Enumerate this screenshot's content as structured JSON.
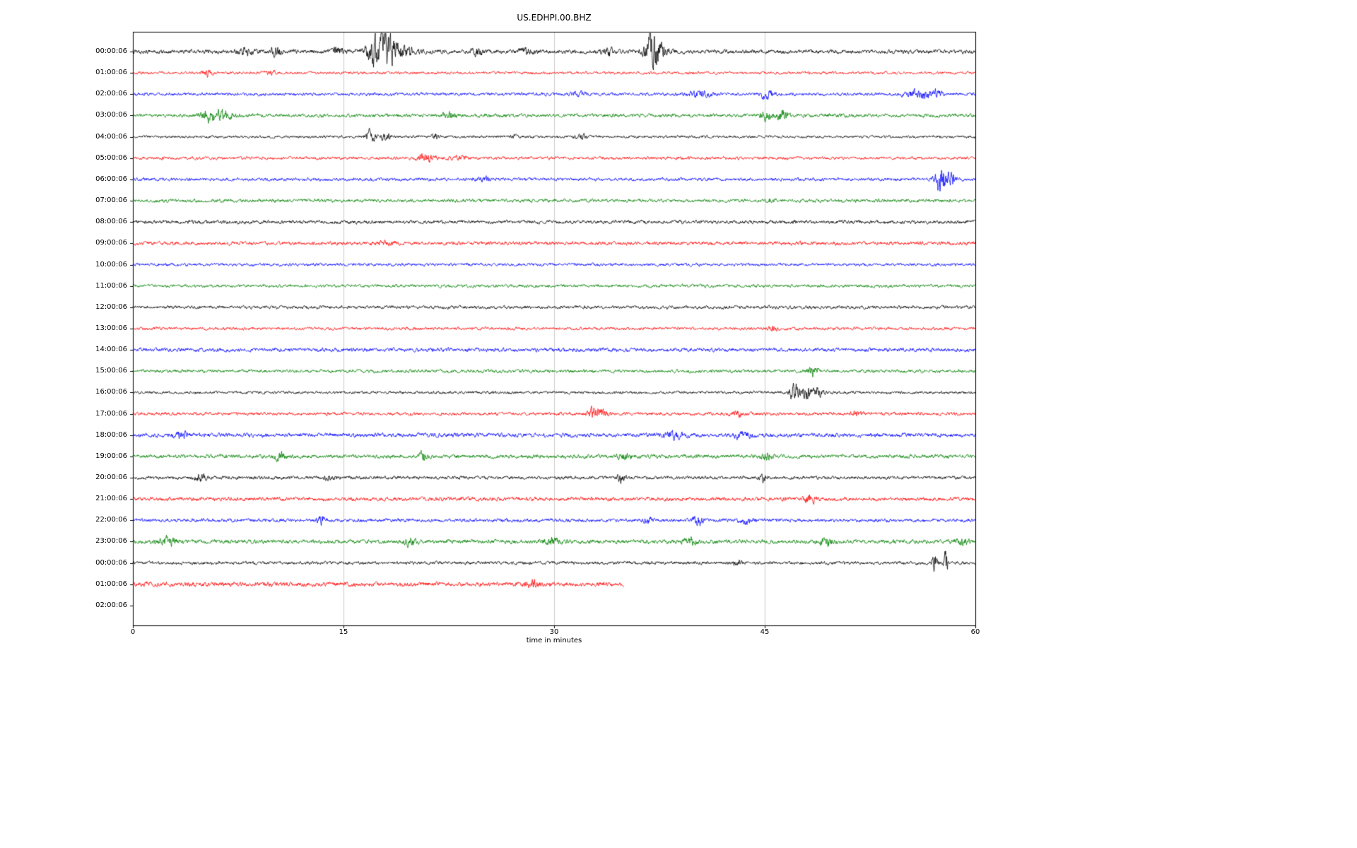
{
  "figure": {
    "background": "#ffffff"
  },
  "chart_data": {
    "type": "line",
    "title": "US.EDHPI.00.BHZ",
    "xlabel": "time in minutes",
    "xlim": [
      0,
      60
    ],
    "x_tick_labels": [
      "0",
      "15",
      "30",
      "45",
      "60"
    ],
    "x_tick_values": [
      0,
      15,
      30,
      45,
      60
    ],
    "grid_minutes": [
      15,
      30,
      45
    ],
    "grid_color": "#cccccc",
    "axis_color": "#000000",
    "color_cycle": [
      "#000000",
      "#ff0000",
      "#0000ff",
      "#008000"
    ],
    "row_labels": [
      "00:00:06",
      "01:00:06",
      "02:00:06",
      "03:00:06",
      "04:00:06",
      "05:00:06",
      "06:00:06",
      "07:00:06",
      "08:00:06",
      "09:00:06",
      "10:00:06",
      "11:00:06",
      "12:00:06",
      "13:00:06",
      "14:00:06",
      "15:00:06",
      "16:00:06",
      "17:00:06",
      "18:00:06",
      "19:00:06",
      "20:00:06",
      "21:00:06",
      "22:00:06",
      "23:00:06",
      "00:00:06",
      "01:00:06",
      "02:00:06"
    ],
    "traces": [
      {
        "label": "00:00:06",
        "color": "#000000",
        "end_minute": 60,
        "base_amp": 3.0,
        "events": [
          [
            8.0,
            1.5,
            0.4
          ],
          [
            10.2,
            2.0,
            0.3
          ],
          [
            14.6,
            2.0,
            0.25
          ],
          [
            17.4,
            7.0,
            0.5
          ],
          [
            18.1,
            4.0,
            0.6
          ],
          [
            19.0,
            2.0,
            0.8
          ],
          [
            24.5,
            1.5,
            0.3
          ],
          [
            28.0,
            1.2,
            0.4
          ],
          [
            33.8,
            2.0,
            0.3
          ],
          [
            37.0,
            8.0,
            0.35
          ],
          [
            37.5,
            3.0,
            0.5
          ]
        ]
      },
      {
        "label": "01:00:06",
        "color": "#ff0000",
        "end_minute": 60,
        "base_amp": 2.0,
        "events": [
          [
            5.3,
            2.5,
            0.25
          ],
          [
            9.8,
            1.2,
            0.3
          ]
        ]
      },
      {
        "label": "02:00:06",
        "color": "#0000ff",
        "end_minute": 60,
        "base_amp": 2.3,
        "events": [
          [
            31.8,
            1.5,
            0.4
          ],
          [
            40.3,
            2.0,
            0.6
          ],
          [
            45.2,
            3.5,
            0.3
          ],
          [
            56.0,
            2.5,
            0.7
          ],
          [
            57.2,
            1.8,
            0.3
          ]
        ]
      },
      {
        "label": "03:00:06",
        "color": "#008000",
        "end_minute": 60,
        "base_amp": 2.6,
        "events": [
          [
            5.4,
            2.5,
            0.4
          ],
          [
            6.4,
            2.5,
            0.5
          ],
          [
            22.5,
            1.3,
            0.4
          ],
          [
            45.1,
            3.2,
            0.25
          ],
          [
            46.2,
            3.0,
            0.3
          ]
        ]
      },
      {
        "label": "04:00:06",
        "color": "#000000",
        "end_minute": 60,
        "base_amp": 2.0,
        "events": [
          [
            16.9,
            4.0,
            0.25
          ],
          [
            18.0,
            3.5,
            0.22
          ],
          [
            21.5,
            2.2,
            0.18
          ],
          [
            27.1,
            1.8,
            0.15
          ],
          [
            31.9,
            2.3,
            0.25
          ]
        ]
      },
      {
        "label": "05:00:06",
        "color": "#ff0000",
        "end_minute": 60,
        "base_amp": 2.2,
        "events": [
          [
            20.9,
            2.2,
            0.5
          ],
          [
            23.2,
            1.4,
            0.4
          ]
        ]
      },
      {
        "label": "06:00:06",
        "color": "#0000ff",
        "end_minute": 60,
        "base_amp": 2.4,
        "events": [
          [
            25.0,
            1.3,
            0.4
          ],
          [
            57.6,
            8.0,
            0.3
          ],
          [
            58.3,
            4.0,
            0.2
          ]
        ]
      },
      {
        "label": "07:00:06",
        "color": "#008000",
        "end_minute": 60,
        "base_amp": 2.5,
        "events": [
          [
            45.5,
            1.2,
            0.3
          ]
        ]
      },
      {
        "label": "08:00:06",
        "color": "#000000",
        "end_minute": 60,
        "base_amp": 2.6,
        "events": []
      },
      {
        "label": "09:00:06",
        "color": "#ff0000",
        "end_minute": 60,
        "base_amp": 2.6,
        "events": [
          [
            18.0,
            1.2,
            0.4
          ]
        ]
      },
      {
        "label": "10:00:06",
        "color": "#0000ff",
        "end_minute": 60,
        "base_amp": 2.2,
        "events": []
      },
      {
        "label": "11:00:06",
        "color": "#008000",
        "end_minute": 60,
        "base_amp": 2.3,
        "events": []
      },
      {
        "label": "12:00:06",
        "color": "#000000",
        "end_minute": 60,
        "base_amp": 2.4,
        "events": []
      },
      {
        "label": "13:00:06",
        "color": "#ff0000",
        "end_minute": 60,
        "base_amp": 2.2,
        "events": [
          [
            45.6,
            1.3,
            0.2
          ]
        ]
      },
      {
        "label": "14:00:06",
        "color": "#0000ff",
        "end_minute": 60,
        "base_amp": 2.8,
        "events": []
      },
      {
        "label": "15:00:06",
        "color": "#008000",
        "end_minute": 60,
        "base_amp": 2.4,
        "events": [
          [
            48.4,
            2.8,
            0.25
          ]
        ]
      },
      {
        "label": "16:00:06",
        "color": "#000000",
        "end_minute": 60,
        "base_amp": 2.1,
        "events": [
          [
            47.1,
            6.0,
            0.25
          ],
          [
            47.9,
            4.0,
            0.3
          ],
          [
            48.8,
            3.0,
            0.25
          ]
        ]
      },
      {
        "label": "17:00:06",
        "color": "#ff0000",
        "end_minute": 60,
        "base_amp": 2.4,
        "events": [
          [
            32.7,
            2.8,
            0.25
          ],
          [
            33.4,
            2.0,
            0.35
          ],
          [
            43.0,
            1.4,
            0.4
          ],
          [
            51.5,
            1.4,
            0.3
          ]
        ]
      },
      {
        "label": "18:00:06",
        "color": "#0000ff",
        "end_minute": 60,
        "base_amp": 3.0,
        "events": [
          [
            3.5,
            1.3,
            0.4
          ],
          [
            38.5,
            1.4,
            0.6
          ],
          [
            43.5,
            1.3,
            0.5
          ]
        ]
      },
      {
        "label": "19:00:06",
        "color": "#008000",
        "end_minute": 60,
        "base_amp": 2.8,
        "events": [
          [
            10.4,
            2.4,
            0.3
          ],
          [
            20.7,
            2.4,
            0.2
          ],
          [
            35.0,
            1.4,
            0.4
          ],
          [
            45.2,
            2.2,
            0.3
          ]
        ]
      },
      {
        "label": "20:00:06",
        "color": "#000000",
        "end_minute": 60,
        "base_amp": 2.4,
        "events": [
          [
            4.8,
            2.0,
            0.3
          ],
          [
            14.0,
            1.4,
            0.3
          ],
          [
            34.8,
            2.2,
            0.2
          ],
          [
            44.9,
            2.6,
            0.2
          ]
        ]
      },
      {
        "label": "21:00:06",
        "color": "#ff0000",
        "end_minute": 60,
        "base_amp": 2.8,
        "events": [
          [
            48.2,
            1.8,
            0.3
          ]
        ]
      },
      {
        "label": "22:00:06",
        "color": "#0000ff",
        "end_minute": 60,
        "base_amp": 2.6,
        "events": [
          [
            13.4,
            2.2,
            0.2
          ],
          [
            36.7,
            1.5,
            0.2
          ],
          [
            40.2,
            2.8,
            0.3
          ],
          [
            43.7,
            1.9,
            0.3
          ]
        ]
      },
      {
        "label": "23:00:06",
        "color": "#008000",
        "end_minute": 60,
        "base_amp": 3.0,
        "events": [
          [
            2.5,
            1.8,
            0.5
          ],
          [
            19.7,
            1.6,
            0.3
          ],
          [
            29.8,
            1.4,
            0.4
          ],
          [
            39.7,
            1.8,
            0.3
          ],
          [
            49.4,
            1.6,
            0.4
          ],
          [
            59.0,
            1.5,
            0.3
          ]
        ]
      },
      {
        "label": "00:00:06",
        "color": "#000000",
        "end_minute": 60,
        "base_amp": 2.4,
        "events": [
          [
            43.0,
            1.3,
            0.3
          ],
          [
            57.1,
            6.0,
            0.12
          ],
          [
            57.9,
            7.0,
            0.1
          ]
        ]
      },
      {
        "label": "01:00:06",
        "color": "#ff0000",
        "end_minute": 35,
        "base_amp": 3.2,
        "events": [
          [
            28.5,
            1.7,
            0.3
          ]
        ]
      }
    ]
  }
}
